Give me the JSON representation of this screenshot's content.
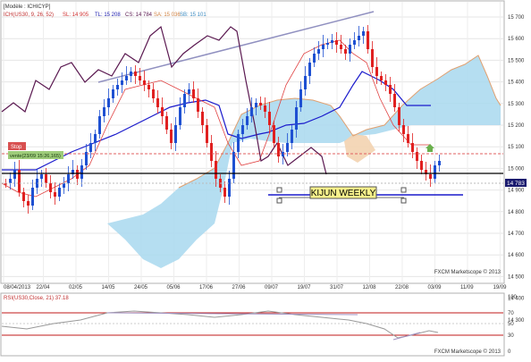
{
  "header": {
    "model_label": "[Modèle : ICHICYP]",
    "indicator_name": "ICH(US30, 9, 26, 52)",
    "sl_label": "SL: 14 905",
    "tl_label": "TL: 15 208",
    "cs_label": "CS: 14 784",
    "sa_label": "SA: 15 036",
    "sb_label": "SB: 15 101"
  },
  "annotations": {
    "stop_tag": "Stop",
    "order_tag": "vente(23/09 15:26,165)",
    "kijun_label": "KIJUN WEEKLY",
    "price_marker": "14 783"
  },
  "watermark_main": "FXCM Marketscope © 2013",
  "watermark_osc": "FXCM Marketscope © 2013",
  "oscillator": {
    "title": "RSI(US30,Close, 21) 37.18",
    "ticks": [
      "100",
      "70",
      "50",
      "30",
      "0"
    ]
  },
  "price_axis": {
    "ticks": [
      "15 700",
      "15 600",
      "15 500",
      "15 400",
      "15 300",
      "15 200",
      "15 100",
      "15 000",
      "14 900",
      "14 800",
      "14 700",
      "14 600",
      "14 500",
      "14 400",
      "14 300"
    ]
  },
  "time_axis": {
    "ticks": [
      "08/04/2013",
      "22/04",
      "02/05",
      "14/05",
      "24/05",
      "05/06",
      "17/06",
      "27/06",
      "09/07",
      "19/07",
      "31/07",
      "12/08",
      "22/08",
      "03/09",
      "11/09",
      "19/09"
    ]
  },
  "colors": {
    "bull_candle": "#1e50d2",
    "bear_candle": "#e02020",
    "cloud": "#a8d8ee",
    "chikou": "#5a1850",
    "kijun": "#1a1acc",
    "tenkan": "#e04040",
    "senkou_b": "#e0a070",
    "trendline": "#9090c0"
  }
}
